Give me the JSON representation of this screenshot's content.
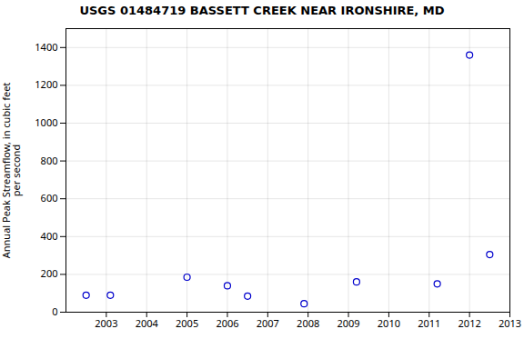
{
  "chart_data": {
    "type": "scatter",
    "title": "USGS 01484719 BASSETT CREEK NEAR IRONSHIRE, MD",
    "ylabel": "Annual Peak Streamflow, in cubic feet\nper second",
    "x": [
      2003.0,
      2003.6,
      2005.5,
      2006.5,
      2007.0,
      2008.4,
      2009.7,
      2011.7,
      2012.5,
      2013.0
    ],
    "values": [
      90,
      90,
      185,
      140,
      85,
      45,
      160,
      150,
      1360,
      305
    ],
    "color": "#0000cc",
    "marker": "circle",
    "xlim": [
      2002.5,
      2013.5
    ],
    "xticks": [
      {
        "value": 2003.5,
        "label": "2003"
      },
      {
        "value": 2004.5,
        "label": "2004"
      },
      {
        "value": 2005.5,
        "label": "2005"
      },
      {
        "value": 2006.5,
        "label": "2006"
      },
      {
        "value": 2007.5,
        "label": "2007"
      },
      {
        "value": 2008.5,
        "label": "2008"
      },
      {
        "value": 2009.5,
        "label": "2009"
      },
      {
        "value": 2010.5,
        "label": "2010"
      },
      {
        "value": 2011.5,
        "label": "2011"
      },
      {
        "value": 2012.5,
        "label": "2012"
      },
      {
        "value": 2013.5,
        "label": "2013"
      }
    ],
    "ylim": [
      0,
      1500
    ],
    "yticks": [
      0,
      200,
      400,
      600,
      800,
      1000,
      1200,
      1400
    ],
    "grid": true
  }
}
